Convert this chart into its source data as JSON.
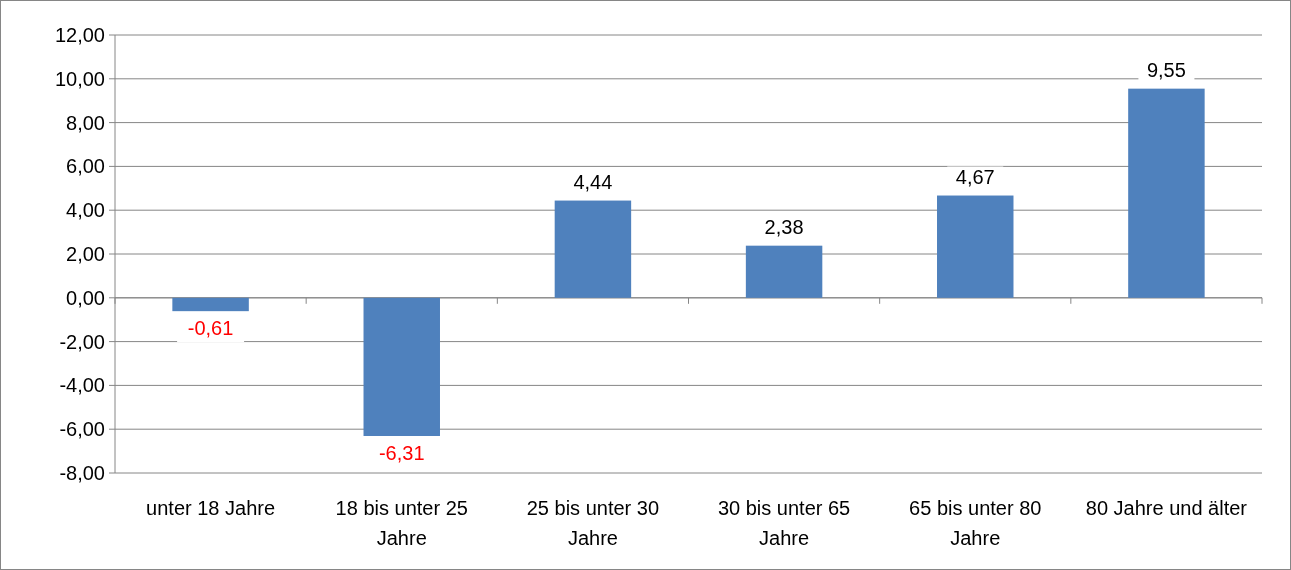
{
  "chart_data": {
    "type": "bar",
    "categories": [
      "unter 18 Jahre",
      "18 bis unter 25 Jahre",
      "25 bis unter 30 Jahre",
      "30 bis unter 65 Jahre",
      "65 bis unter 80 Jahre",
      "80 Jahre und älter"
    ],
    "values": [
      -0.61,
      -6.31,
      4.44,
      2.38,
      4.67,
      9.55
    ],
    "value_labels": [
      "-0,61",
      "-6,31",
      "4,44",
      "2,38",
      "4,67",
      "9,55"
    ],
    "color": "#4f81bd",
    "ylim": [
      -8,
      12
    ],
    "yticks": [
      {
        "value": -8,
        "label": "-8,00"
      },
      {
        "value": -6,
        "label": "-6,00"
      },
      {
        "value": -4,
        "label": "-4,00"
      },
      {
        "value": -2,
        "label": "-2,00"
      },
      {
        "value": 0,
        "label": "0,00"
      },
      {
        "value": 2,
        "label": "2,00"
      },
      {
        "value": 4,
        "label": "4,00"
      },
      {
        "value": 6,
        "label": "6,00"
      },
      {
        "value": 8,
        "label": "8,00"
      },
      {
        "value": 10,
        "label": "10,00"
      },
      {
        "value": 12,
        "label": "12,00"
      }
    ],
    "grid": "y"
  }
}
